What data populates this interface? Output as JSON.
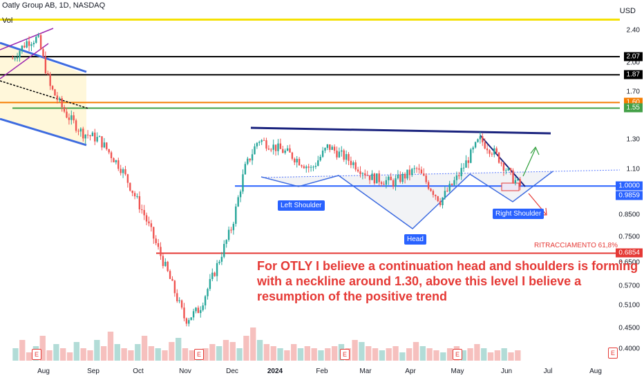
{
  "header": {
    "title": "Oatly Group AB, 1D, NASDAQ",
    "vol_label": "Vol",
    "currency": "USD"
  },
  "y_axis": {
    "ticks": [
      "2.40",
      "2.00",
      "1.70",
      "1.30",
      "1.10",
      "0.8500",
      "0.7500",
      "0.6500",
      "0.5700",
      "0.5100",
      "0.4500",
      "0.4000"
    ],
    "badges": [
      {
        "label": "2.07",
        "color": "#000000"
      },
      {
        "label": "1.87",
        "color": "#000000"
      },
      {
        "label": "1.60",
        "color": "#f57c00"
      },
      {
        "label": "1.55",
        "color": "#43a047"
      },
      {
        "label": "1.0000",
        "color": "#2962ff"
      },
      {
        "label": "0.9859",
        "color": "#2962ff"
      },
      {
        "label": "0.6854",
        "color": "#e53935"
      }
    ]
  },
  "x_axis": {
    "ticks": [
      {
        "label": "Aug",
        "bold": false
      },
      {
        "label": "Sep",
        "bold": false
      },
      {
        "label": "Oct",
        "bold": false
      },
      {
        "label": "Nov",
        "bold": false
      },
      {
        "label": "Dec",
        "bold": false
      },
      {
        "label": "2024",
        "bold": true
      },
      {
        "label": "Feb",
        "bold": false
      },
      {
        "label": "Mar",
        "bold": false
      },
      {
        "label": "Apr",
        "bold": false
      },
      {
        "label": "May",
        "bold": false
      },
      {
        "label": "Jun",
        "bold": false
      },
      {
        "label": "Jul",
        "bold": false
      },
      {
        "label": "Aug",
        "bold": false
      }
    ]
  },
  "annotations": {
    "left_shoulder": "Left Shoulder",
    "head": "Head",
    "right_shoulder": "Right Shoulder",
    "retracement": "RITRACCIAMENTO 61,8%",
    "note_lines": [
      "For OTLY I believe a continuation head and shoulders is forming",
      "with a neckline around 1.30, above this level I believe a",
      "resumption of the positive trend"
    ],
    "earnings_marker": "E"
  },
  "chart_data": {
    "type": "candlestick",
    "title": "Oatly Group AB, 1D, NASDAQ",
    "currency": "USD",
    "y_scale": "log",
    "ylim": [
      0.38,
      2.6
    ],
    "x_range": [
      "Jul 2023",
      "Aug 2024"
    ],
    "horizontal_levels": [
      {
        "value": 2.55,
        "color": "#f5e100"
      },
      {
        "value": 2.07,
        "color": "#000000"
      },
      {
        "value": 1.87,
        "color": "#000000"
      },
      {
        "value": 1.6,
        "color": "#f57c00"
      },
      {
        "value": 1.55,
        "color": "#43a047"
      },
      {
        "value": 1.0,
        "color": "#2962ff"
      },
      {
        "value": 0.6854,
        "color": "#e53935",
        "label": "RITRACCIAMENTO 61,8%"
      }
    ],
    "price_path": [
      {
        "date": "2023-07-10",
        "close": 2.05
      },
      {
        "date": "2023-07-20",
        "close": 2.25
      },
      {
        "date": "2023-07-28",
        "close": 2.3
      },
      {
        "date": "2023-08-05",
        "close": 1.75
      },
      {
        "date": "2023-08-15",
        "close": 1.5
      },
      {
        "date": "2023-08-25",
        "close": 1.35
      },
      {
        "date": "2023-09-05",
        "close": 1.3
      },
      {
        "date": "2023-09-20",
        "close": 1.1
      },
      {
        "date": "2023-10-05",
        "close": 0.85
      },
      {
        "date": "2023-10-20",
        "close": 0.62
      },
      {
        "date": "2023-11-01",
        "close": 0.47
      },
      {
        "date": "2023-11-10",
        "close": 0.5
      },
      {
        "date": "2023-11-20",
        "close": 0.62
      },
      {
        "date": "2023-12-01",
        "close": 0.8
      },
      {
        "date": "2023-12-10",
        "close": 1.1
      },
      {
        "date": "2023-12-20",
        "close": 1.3
      },
      {
        "date": "2024-01-10",
        "close": 1.2
      },
      {
        "date": "2024-01-25",
        "close": 1.1
      },
      {
        "date": "2024-02-05",
        "close": 1.25
      },
      {
        "date": "2024-02-20",
        "close": 1.15
      },
      {
        "date": "2024-03-05",
        "close": 1.05
      },
      {
        "date": "2024-03-20",
        "close": 1.02
      },
      {
        "date": "2024-04-05",
        "close": 1.1
      },
      {
        "date": "2024-04-20",
        "close": 0.92
      },
      {
        "date": "2024-05-01",
        "close": 1.05
      },
      {
        "date": "2024-05-15",
        "close": 1.3
      },
      {
        "date": "2024-05-25",
        "close": 1.2
      },
      {
        "date": "2024-06-05",
        "close": 1.05
      },
      {
        "date": "2024-06-12",
        "close": 0.99
      }
    ],
    "volume_relative": [
      0.3,
      0.5,
      0.2,
      0.35,
      0.6,
      0.25,
      0.4,
      0.3,
      0.2,
      0.45,
      0.3,
      0.25,
      0.5,
      0.35,
      0.7,
      0.4,
      0.3,
      0.25,
      0.4,
      0.6,
      0.35,
      0.3,
      0.25,
      0.45,
      0.55,
      0.3,
      0.25,
      0.2,
      0.3,
      0.4,
      0.35,
      0.5,
      0.45,
      0.3,
      0.6,
      0.8,
      0.5,
      0.4,
      0.35,
      0.3,
      0.25,
      0.4,
      0.3,
      0.35,
      0.3,
      0.25,
      0.3,
      0.35,
      0.4,
      0.3,
      0.5,
      0.45,
      0.35,
      0.3,
      0.25,
      0.3,
      0.35,
      0.2,
      0.3,
      0.45,
      0.35,
      0.3,
      0.25,
      0.2,
      0.3,
      0.35,
      0.25,
      0.3,
      0.4,
      0.3,
      0.2,
      0.25,
      0.3,
      0.2,
      0.25
    ]
  }
}
